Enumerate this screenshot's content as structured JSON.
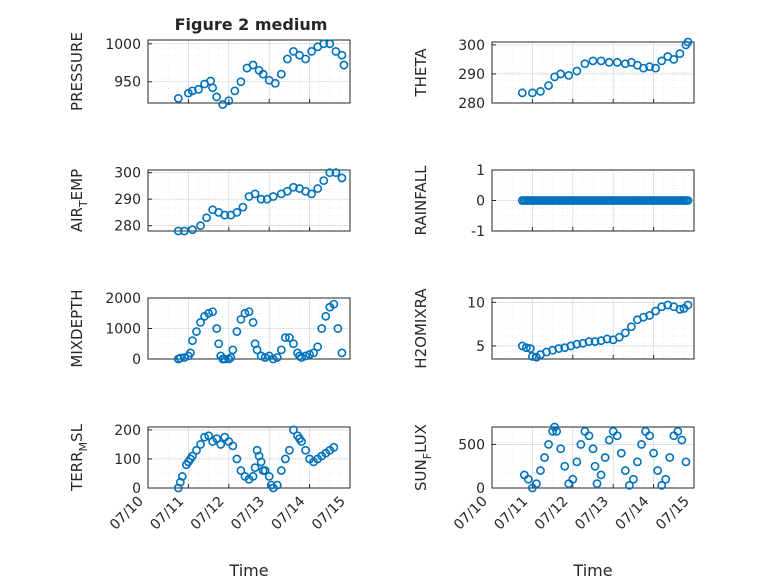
{
  "figure_title": "Figure 2 medium",
  "colors": {
    "series": "#0072BD",
    "axis": "#262626",
    "grid": "#cfcfcf"
  },
  "chart_data": [
    {
      "type": "scatter",
      "title": "Figure 2 medium",
      "xlabel": "",
      "ylabel": "PRESSURE",
      "xlim": [
        0,
        5
      ],
      "ylim": [
        922,
        1005
      ],
      "yticks": [
        950,
        1000
      ],
      "ytick_labels": [
        "950",
        "1000"
      ],
      "xticks": [
        0,
        1,
        2,
        3,
        4,
        5
      ],
      "xtick_labels": [],
      "grid": true,
      "series": [
        {
          "x": [
            0.75,
            1.0,
            1.1,
            1.25,
            1.4,
            1.55,
            1.6,
            1.7,
            1.85,
            2.0,
            2.15,
            2.3,
            2.45,
            2.6,
            2.75,
            2.85,
            3.0,
            3.15,
            3.3,
            3.45,
            3.6,
            3.75,
            3.9,
            4.05,
            4.2,
            4.35,
            4.5,
            4.65,
            4.8,
            4.85
          ],
          "y": [
            928,
            935,
            938,
            940,
            947,
            951,
            942,
            930,
            920,
            925,
            938,
            950,
            968,
            972,
            965,
            960,
            952,
            948,
            960,
            980,
            990,
            985,
            980,
            990,
            996,
            1000,
            1000,
            990,
            985,
            972
          ]
        }
      ]
    },
    {
      "type": "scatter",
      "title": "",
      "xlabel": "",
      "ylabel": "THETA",
      "xlim": [
        0,
        5
      ],
      "ylim": [
        280,
        301
      ],
      "yticks": [
        280,
        290,
        300
      ],
      "ytick_labels": [
        "280",
        "290",
        "300"
      ],
      "xticks": [
        0,
        1,
        2,
        3,
        4,
        5
      ],
      "xtick_labels": [],
      "grid": true,
      "series": [
        {
          "x": [
            0.75,
            1.0,
            1.2,
            1.4,
            1.55,
            1.7,
            1.9,
            2.1,
            2.3,
            2.5,
            2.7,
            2.9,
            3.1,
            3.3,
            3.45,
            3.6,
            3.75,
            3.9,
            4.05,
            4.2,
            4.35,
            4.5,
            4.65,
            4.8,
            4.85
          ],
          "y": [
            283.5,
            283.5,
            284,
            286,
            289,
            290,
            289.5,
            291,
            293.5,
            294.5,
            294.5,
            294,
            294,
            293.5,
            294,
            293,
            292,
            292.5,
            292,
            294.5,
            296,
            295,
            297,
            300,
            301
          ]
        }
      ]
    },
    {
      "type": "scatter",
      "title": "",
      "xlabel": "",
      "ylabel": "AIR_TEMP",
      "ylabel_main": "AIR",
      "ylabel_sub": "T",
      "ylabel_tail": "EMP",
      "xlim": [
        0,
        5
      ],
      "ylim": [
        278,
        301
      ],
      "yticks": [
        280,
        290,
        300
      ],
      "ytick_labels": [
        "280",
        "290",
        "300"
      ],
      "xticks": [
        0,
        1,
        2,
        3,
        4,
        5
      ],
      "xtick_labels": [],
      "grid": true,
      "series": [
        {
          "x": [
            0.75,
            0.9,
            1.1,
            1.3,
            1.45,
            1.6,
            1.75,
            1.9,
            2.05,
            2.2,
            2.35,
            2.5,
            2.65,
            2.8,
            2.95,
            3.1,
            3.3,
            3.45,
            3.6,
            3.75,
            3.9,
            4.05,
            4.2,
            4.35,
            4.5,
            4.65,
            4.8
          ],
          "y": [
            278,
            278,
            278.5,
            280,
            283,
            286,
            285,
            284,
            284,
            285,
            287,
            291,
            292,
            290,
            290,
            291,
            292,
            293,
            294.5,
            294,
            293,
            292,
            294,
            297,
            300,
            300,
            298
          ]
        }
      ]
    },
    {
      "type": "scatter",
      "title": "",
      "xlabel": "",
      "ylabel": "RAINFALL",
      "xlim": [
        0,
        5
      ],
      "ylim": [
        -1,
        1
      ],
      "yticks": [
        -1,
        0,
        1
      ],
      "ytick_labels": [
        "-1",
        "0",
        "1"
      ],
      "xticks": [
        0,
        1,
        2,
        3,
        4,
        5
      ],
      "xtick_labels": [],
      "grid": true,
      "series": [
        {
          "x_range": [
            0.75,
            4.85
          ],
          "count": 90,
          "y_constant": 0
        }
      ]
    },
    {
      "type": "scatter",
      "title": "",
      "xlabel": "",
      "ylabel": "MIXDEPTH",
      "xlim": [
        0,
        5
      ],
      "ylim": [
        0,
        2000
      ],
      "yticks": [
        0,
        1000,
        2000
      ],
      "ytick_labels": [
        "0",
        "1000",
        "2000"
      ],
      "xticks": [
        0,
        1,
        2,
        3,
        4,
        5
      ],
      "xtick_labels": [],
      "grid": true,
      "series": [
        {
          "x": [
            0.75,
            0.8,
            0.9,
            1.0,
            1.05,
            1.1,
            1.2,
            1.3,
            1.4,
            1.5,
            1.6,
            1.7,
            1.75,
            1.8,
            1.85,
            1.9,
            2.0,
            2.05,
            2.1,
            2.2,
            2.3,
            2.4,
            2.5,
            2.6,
            2.65,
            2.7,
            2.8,
            2.9,
            3.0,
            3.1,
            3.2,
            3.3,
            3.4,
            3.5,
            3.6,
            3.7,
            3.75,
            3.8,
            3.9,
            4.0,
            4.1,
            4.2,
            4.3,
            4.4,
            4.5,
            4.6,
            4.7,
            4.8
          ],
          "y": [
            0,
            30,
            50,
            100,
            200,
            600,
            900,
            1200,
            1400,
            1500,
            1550,
            1000,
            500,
            100,
            0,
            0,
            0,
            50,
            300,
            900,
            1300,
            1500,
            1550,
            1200,
            500,
            300,
            100,
            50,
            100,
            0,
            50,
            300,
            700,
            700,
            500,
            200,
            100,
            50,
            100,
            150,
            200,
            400,
            1000,
            1400,
            1700,
            1800,
            1000,
            200
          ]
        }
      ]
    },
    {
      "type": "scatter",
      "title": "",
      "xlabel": "",
      "ylabel": "H2OMIXRA",
      "xlim": [
        0,
        5
      ],
      "ylim": [
        3.5,
        10.5
      ],
      "yticks": [
        5,
        10
      ],
      "ytick_labels": [
        "5",
        "10"
      ],
      "xticks": [
        0,
        1,
        2,
        3,
        4,
        5
      ],
      "xtick_labels": [],
      "grid": true,
      "series": [
        {
          "x": [
            0.75,
            0.85,
            0.95,
            1.0,
            1.1,
            1.2,
            1.35,
            1.5,
            1.65,
            1.8,
            1.95,
            2.1,
            2.25,
            2.4,
            2.55,
            2.7,
            2.85,
            3.0,
            3.15,
            3.3,
            3.45,
            3.6,
            3.75,
            3.9,
            4.05,
            4.2,
            4.35,
            4.5,
            4.65,
            4.75,
            4.85
          ],
          "y": [
            5,
            4.8,
            4.7,
            3.8,
            3.7,
            4,
            4.3,
            4.5,
            4.7,
            4.8,
            5,
            5.2,
            5.3,
            5.5,
            5.5,
            5.6,
            5.8,
            5.7,
            6,
            6.5,
            7.2,
            8,
            8.3,
            8.5,
            9,
            9.5,
            9.7,
            9.5,
            9.2,
            9.3,
            9.7
          ]
        }
      ]
    },
    {
      "type": "scatter",
      "title": "",
      "xlabel": "Time",
      "ylabel": "TERR_MSL",
      "ylabel_main": "TERR",
      "ylabel_sub": "M",
      "ylabel_tail": "SL",
      "xlim": [
        0,
        5
      ],
      "ylim": [
        0,
        210
      ],
      "yticks": [
        0,
        100,
        200
      ],
      "ytick_labels": [
        "0",
        "100",
        "200"
      ],
      "xticks": [
        0,
        1,
        2,
        3,
        4,
        5
      ],
      "xtick_labels": [
        "07/10",
        "07/11",
        "07/12",
        "07/13",
        "07/14",
        "07/15"
      ],
      "grid": true,
      "series": [
        {
          "x": [
            0.75,
            0.8,
            0.85,
            0.95,
            1.0,
            1.05,
            1.1,
            1.2,
            1.3,
            1.4,
            1.5,
            1.6,
            1.7,
            1.8,
            1.9,
            2.0,
            2.1,
            2.2,
            2.3,
            2.4,
            2.5,
            2.6,
            2.65,
            2.7,
            2.75,
            2.8,
            2.85,
            2.9,
            3.0,
            3.05,
            3.1,
            3.2,
            3.3,
            3.4,
            3.5,
            3.6,
            3.7,
            3.75,
            3.8,
            3.9,
            4.0,
            4.1,
            4.2,
            4.3,
            4.4,
            4.5,
            4.6
          ],
          "y": [
            0,
            20,
            40,
            80,
            90,
            100,
            110,
            130,
            150,
            175,
            180,
            160,
            170,
            150,
            175,
            160,
            145,
            100,
            60,
            40,
            30,
            40,
            70,
            130,
            110,
            90,
            60,
            60,
            40,
            10,
            0,
            10,
            60,
            100,
            130,
            200,
            180,
            170,
            160,
            130,
            100,
            90,
            100,
            110,
            120,
            130,
            140
          ]
        }
      ]
    },
    {
      "type": "scatter",
      "title": "",
      "xlabel": "Time",
      "ylabel": "SUN_FLUX",
      "ylabel_main": "SUN",
      "ylabel_sub": "F",
      "ylabel_tail": "LUX",
      "xlim": [
        0,
        5
      ],
      "ylim": [
        0,
        700
      ],
      "yticks": [
        0,
        500
      ],
      "ytick_labels": [
        "0",
        "500"
      ],
      "xticks": [
        0,
        1,
        2,
        3,
        4,
        5
      ],
      "xtick_labels": [
        "07/10",
        "07/11",
        "07/12",
        "07/13",
        "07/14",
        "07/15"
      ],
      "grid": true,
      "series": [
        {
          "x": [
            0.8,
            0.9,
            1.0,
            1.1,
            1.2,
            1.3,
            1.4,
            1.5,
            1.55,
            1.6,
            1.7,
            1.8,
            1.9,
            2.0,
            2.1,
            2.2,
            2.3,
            2.4,
            2.5,
            2.55,
            2.6,
            2.7,
            2.8,
            2.9,
            3.0,
            3.1,
            3.2,
            3.3,
            3.4,
            3.5,
            3.6,
            3.7,
            3.8,
            3.9,
            4.0,
            4.1,
            4.2,
            4.3,
            4.4,
            4.5,
            4.6,
            4.7,
            4.8
          ],
          "y": [
            150,
            100,
            0,
            50,
            200,
            350,
            500,
            650,
            700,
            650,
            450,
            250,
            50,
            100,
            300,
            500,
            650,
            600,
            450,
            250,
            50,
            150,
            350,
            550,
            650,
            600,
            400,
            200,
            30,
            100,
            300,
            500,
            650,
            600,
            400,
            200,
            30,
            100,
            350,
            600,
            650,
            550,
            300
          ]
        }
      ]
    }
  ]
}
